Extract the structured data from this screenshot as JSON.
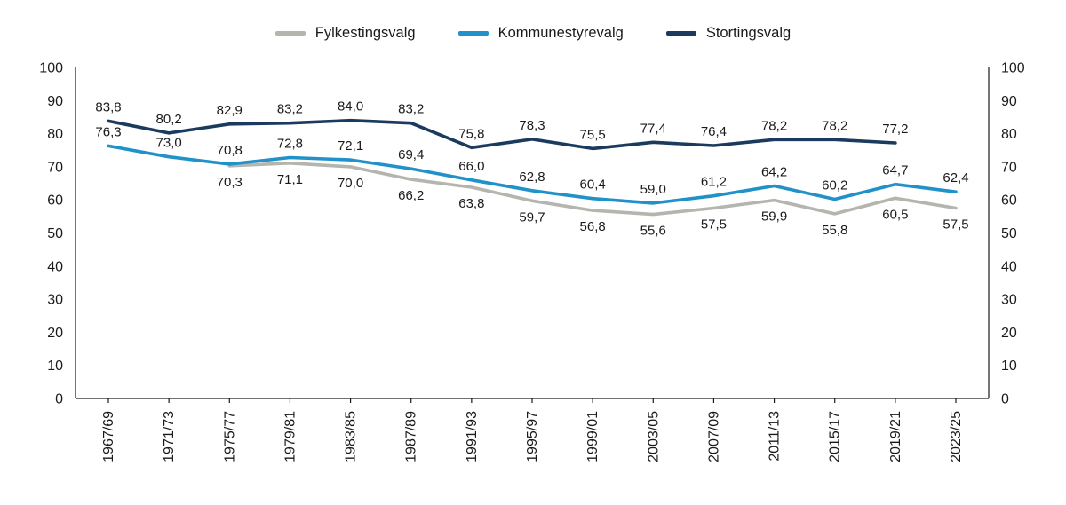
{
  "chart_data": {
    "type": "line",
    "title": "",
    "xlabel": "",
    "ylabel": "",
    "categories": [
      "1967/69",
      "1971/73",
      "1975/77",
      "1979/81",
      "1983/85",
      "1987/89",
      "1991/93",
      "1995/97",
      "1999/01",
      "2003/05",
      "2007/09",
      "2011/13",
      "2015/17",
      "2019/21",
      "2023/25"
    ],
    "series": [
      {
        "name": "Fylkestingsvalg",
        "color": "#b5b5b0",
        "label_position": "below",
        "values": [
          null,
          null,
          70.3,
          71.1,
          70.0,
          66.2,
          63.8,
          59.7,
          56.8,
          55.6,
          57.5,
          59.9,
          55.8,
          60.5,
          57.5
        ]
      },
      {
        "name": "Kommunestyrevalg",
        "color": "#2191c9",
        "label_position": "above",
        "values": [
          76.3,
          73.0,
          70.8,
          72.8,
          72.1,
          69.4,
          66.0,
          62.8,
          60.4,
          59.0,
          61.2,
          64.2,
          60.2,
          64.7,
          62.4
        ]
      },
      {
        "name": "Stortingsvalg",
        "color": "#1a3a5e",
        "label_position": "above",
        "values": [
          83.8,
          80.2,
          82.9,
          83.2,
          84.0,
          83.2,
          75.8,
          78.3,
          75.5,
          77.4,
          76.4,
          78.2,
          78.2,
          77.2,
          null
        ]
      }
    ],
    "ylim": [
      0,
      100
    ],
    "yticks": [
      0,
      10,
      20,
      30,
      40,
      50,
      60,
      70,
      80,
      90,
      100
    ],
    "y_axis_sides": [
      "left",
      "right"
    ],
    "legend_position": "top",
    "grid": false,
    "data_labels": true,
    "decimal_separator": ",",
    "axis_color": "#1a1a1a",
    "text_color": "#1a1a1a"
  }
}
